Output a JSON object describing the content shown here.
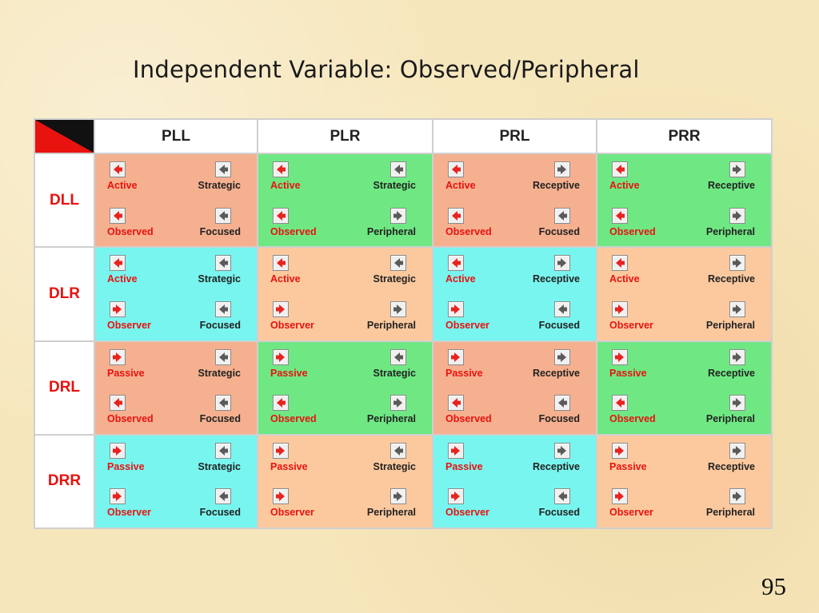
{
  "slide": {
    "title": "Independent Variable: Observed/Peripheral",
    "page_number": "95"
  },
  "table": {
    "columns": [
      "PLL",
      "PLR",
      "PRL",
      "PRR"
    ],
    "rows": [
      {
        "label": "DLL",
        "cells": [
          {
            "color": "#f5b08f",
            "items": [
              {
                "text": "Active",
                "icon": "arrow-left-red-icon"
              },
              {
                "text": "Strategic",
                "icon": "arrow-left-gray-icon"
              },
              {
                "text": "Observed",
                "icon": "arrow-left-red-icon"
              },
              {
                "text": "Focused",
                "icon": "arrow-left-gray-icon"
              }
            ]
          },
          {
            "color": "#6fe883",
            "items": [
              {
                "text": "Active",
                "icon": "arrow-left-red-icon"
              },
              {
                "text": "Strategic",
                "icon": "arrow-left-gray-icon"
              },
              {
                "text": "Observed",
                "icon": "arrow-left-red-icon"
              },
              {
                "text": "Peripheral",
                "icon": "arrow-right-gray-icon"
              }
            ]
          },
          {
            "color": "#f5b08f",
            "items": [
              {
                "text": "Active",
                "icon": "arrow-left-red-icon"
              },
              {
                "text": "Receptive",
                "icon": "arrow-right-gray-icon"
              },
              {
                "text": "Observed",
                "icon": "arrow-left-red-icon"
              },
              {
                "text": "Focused",
                "icon": "arrow-left-gray-icon"
              }
            ]
          },
          {
            "color": "#6fe883",
            "items": [
              {
                "text": "Active",
                "icon": "arrow-left-red-icon"
              },
              {
                "text": "Receptive",
                "icon": "arrow-right-gray-icon"
              },
              {
                "text": "Observed",
                "icon": "arrow-left-red-icon"
              },
              {
                "text": "Peripheral",
                "icon": "arrow-right-gray-icon"
              }
            ]
          }
        ]
      },
      {
        "label": "DLR",
        "cells": [
          {
            "color": "#79f5ef",
            "items": [
              {
                "text": "Active",
                "icon": "arrow-left-red-icon"
              },
              {
                "text": "Strategic",
                "icon": "arrow-left-gray-icon"
              },
              {
                "text": "Observer",
                "icon": "arrow-right-red-icon"
              },
              {
                "text": "Focused",
                "icon": "arrow-left-gray-icon"
              }
            ]
          },
          {
            "color": "#fcc99e",
            "items": [
              {
                "text": "Active",
                "icon": "arrow-left-red-icon"
              },
              {
                "text": "Strategic",
                "icon": "arrow-left-gray-icon"
              },
              {
                "text": "Observer",
                "icon": "arrow-right-red-icon"
              },
              {
                "text": "Peripheral",
                "icon": "arrow-right-gray-icon"
              }
            ]
          },
          {
            "color": "#79f5ef",
            "items": [
              {
                "text": "Active",
                "icon": "arrow-left-red-icon"
              },
              {
                "text": "Receptive",
                "icon": "arrow-right-gray-icon"
              },
              {
                "text": "Observer",
                "icon": "arrow-right-red-icon"
              },
              {
                "text": "Focused",
                "icon": "arrow-left-gray-icon"
              }
            ]
          },
          {
            "color": "#fcc99e",
            "items": [
              {
                "text": "Active",
                "icon": "arrow-left-red-icon"
              },
              {
                "text": "Receptive",
                "icon": "arrow-right-gray-icon"
              },
              {
                "text": "Observer",
                "icon": "arrow-right-red-icon"
              },
              {
                "text": "Peripheral",
                "icon": "arrow-right-gray-icon"
              }
            ]
          }
        ]
      },
      {
        "label": "DRL",
        "cells": [
          {
            "color": "#f5b08f",
            "items": [
              {
                "text": "Passive",
                "icon": "arrow-right-red-icon"
              },
              {
                "text": "Strategic",
                "icon": "arrow-left-gray-icon"
              },
              {
                "text": "Observed",
                "icon": "arrow-left-red-icon"
              },
              {
                "text": "Focused",
                "icon": "arrow-left-gray-icon"
              }
            ]
          },
          {
            "color": "#6fe883",
            "items": [
              {
                "text": "Passive",
                "icon": "arrow-right-red-icon"
              },
              {
                "text": "Strategic",
                "icon": "arrow-left-gray-icon"
              },
              {
                "text": "Observed",
                "icon": "arrow-left-red-icon"
              },
              {
                "text": "Peripheral",
                "icon": "arrow-right-gray-icon"
              }
            ]
          },
          {
            "color": "#f5b08f",
            "items": [
              {
                "text": "Passive",
                "icon": "arrow-right-red-icon"
              },
              {
                "text": "Receptive",
                "icon": "arrow-right-gray-icon"
              },
              {
                "text": "Observed",
                "icon": "arrow-left-red-icon"
              },
              {
                "text": "Focused",
                "icon": "arrow-left-gray-icon"
              }
            ]
          },
          {
            "color": "#6fe883",
            "items": [
              {
                "text": "Passive",
                "icon": "arrow-right-red-icon"
              },
              {
                "text": "Receptive",
                "icon": "arrow-right-gray-icon"
              },
              {
                "text": "Observed",
                "icon": "arrow-left-red-icon"
              },
              {
                "text": "Peripheral",
                "icon": "arrow-right-gray-icon"
              }
            ]
          }
        ]
      },
      {
        "label": "DRR",
        "cells": [
          {
            "color": "#79f5ef",
            "items": [
              {
                "text": "Passive",
                "icon": "arrow-right-red-icon"
              },
              {
                "text": "Strategic",
                "icon": "arrow-left-gray-icon"
              },
              {
                "text": "Observer",
                "icon": "arrow-right-red-icon"
              },
              {
                "text": "Focused",
                "icon": "arrow-left-gray-icon"
              }
            ]
          },
          {
            "color": "#fcc99e",
            "items": [
              {
                "text": "Passive",
                "icon": "arrow-right-red-icon"
              },
              {
                "text": "Strategic",
                "icon": "arrow-left-gray-icon"
              },
              {
                "text": "Observer",
                "icon": "arrow-right-red-icon"
              },
              {
                "text": "Peripheral",
                "icon": "arrow-right-gray-icon"
              }
            ]
          },
          {
            "color": "#79f5ef",
            "items": [
              {
                "text": "Passive",
                "icon": "arrow-right-red-icon"
              },
              {
                "text": "Receptive",
                "icon": "arrow-right-gray-icon"
              },
              {
                "text": "Observer",
                "icon": "arrow-right-red-icon"
              },
              {
                "text": "Focused",
                "icon": "arrow-left-gray-icon"
              }
            ]
          },
          {
            "color": "#fcc99e",
            "items": [
              {
                "text": "Passive",
                "icon": "arrow-right-red-icon"
              },
              {
                "text": "Receptive",
                "icon": "arrow-right-gray-icon"
              },
              {
                "text": "Observer",
                "icon": "arrow-right-red-icon"
              },
              {
                "text": "Peripheral",
                "icon": "arrow-right-gray-icon"
              }
            ]
          }
        ]
      }
    ]
  }
}
